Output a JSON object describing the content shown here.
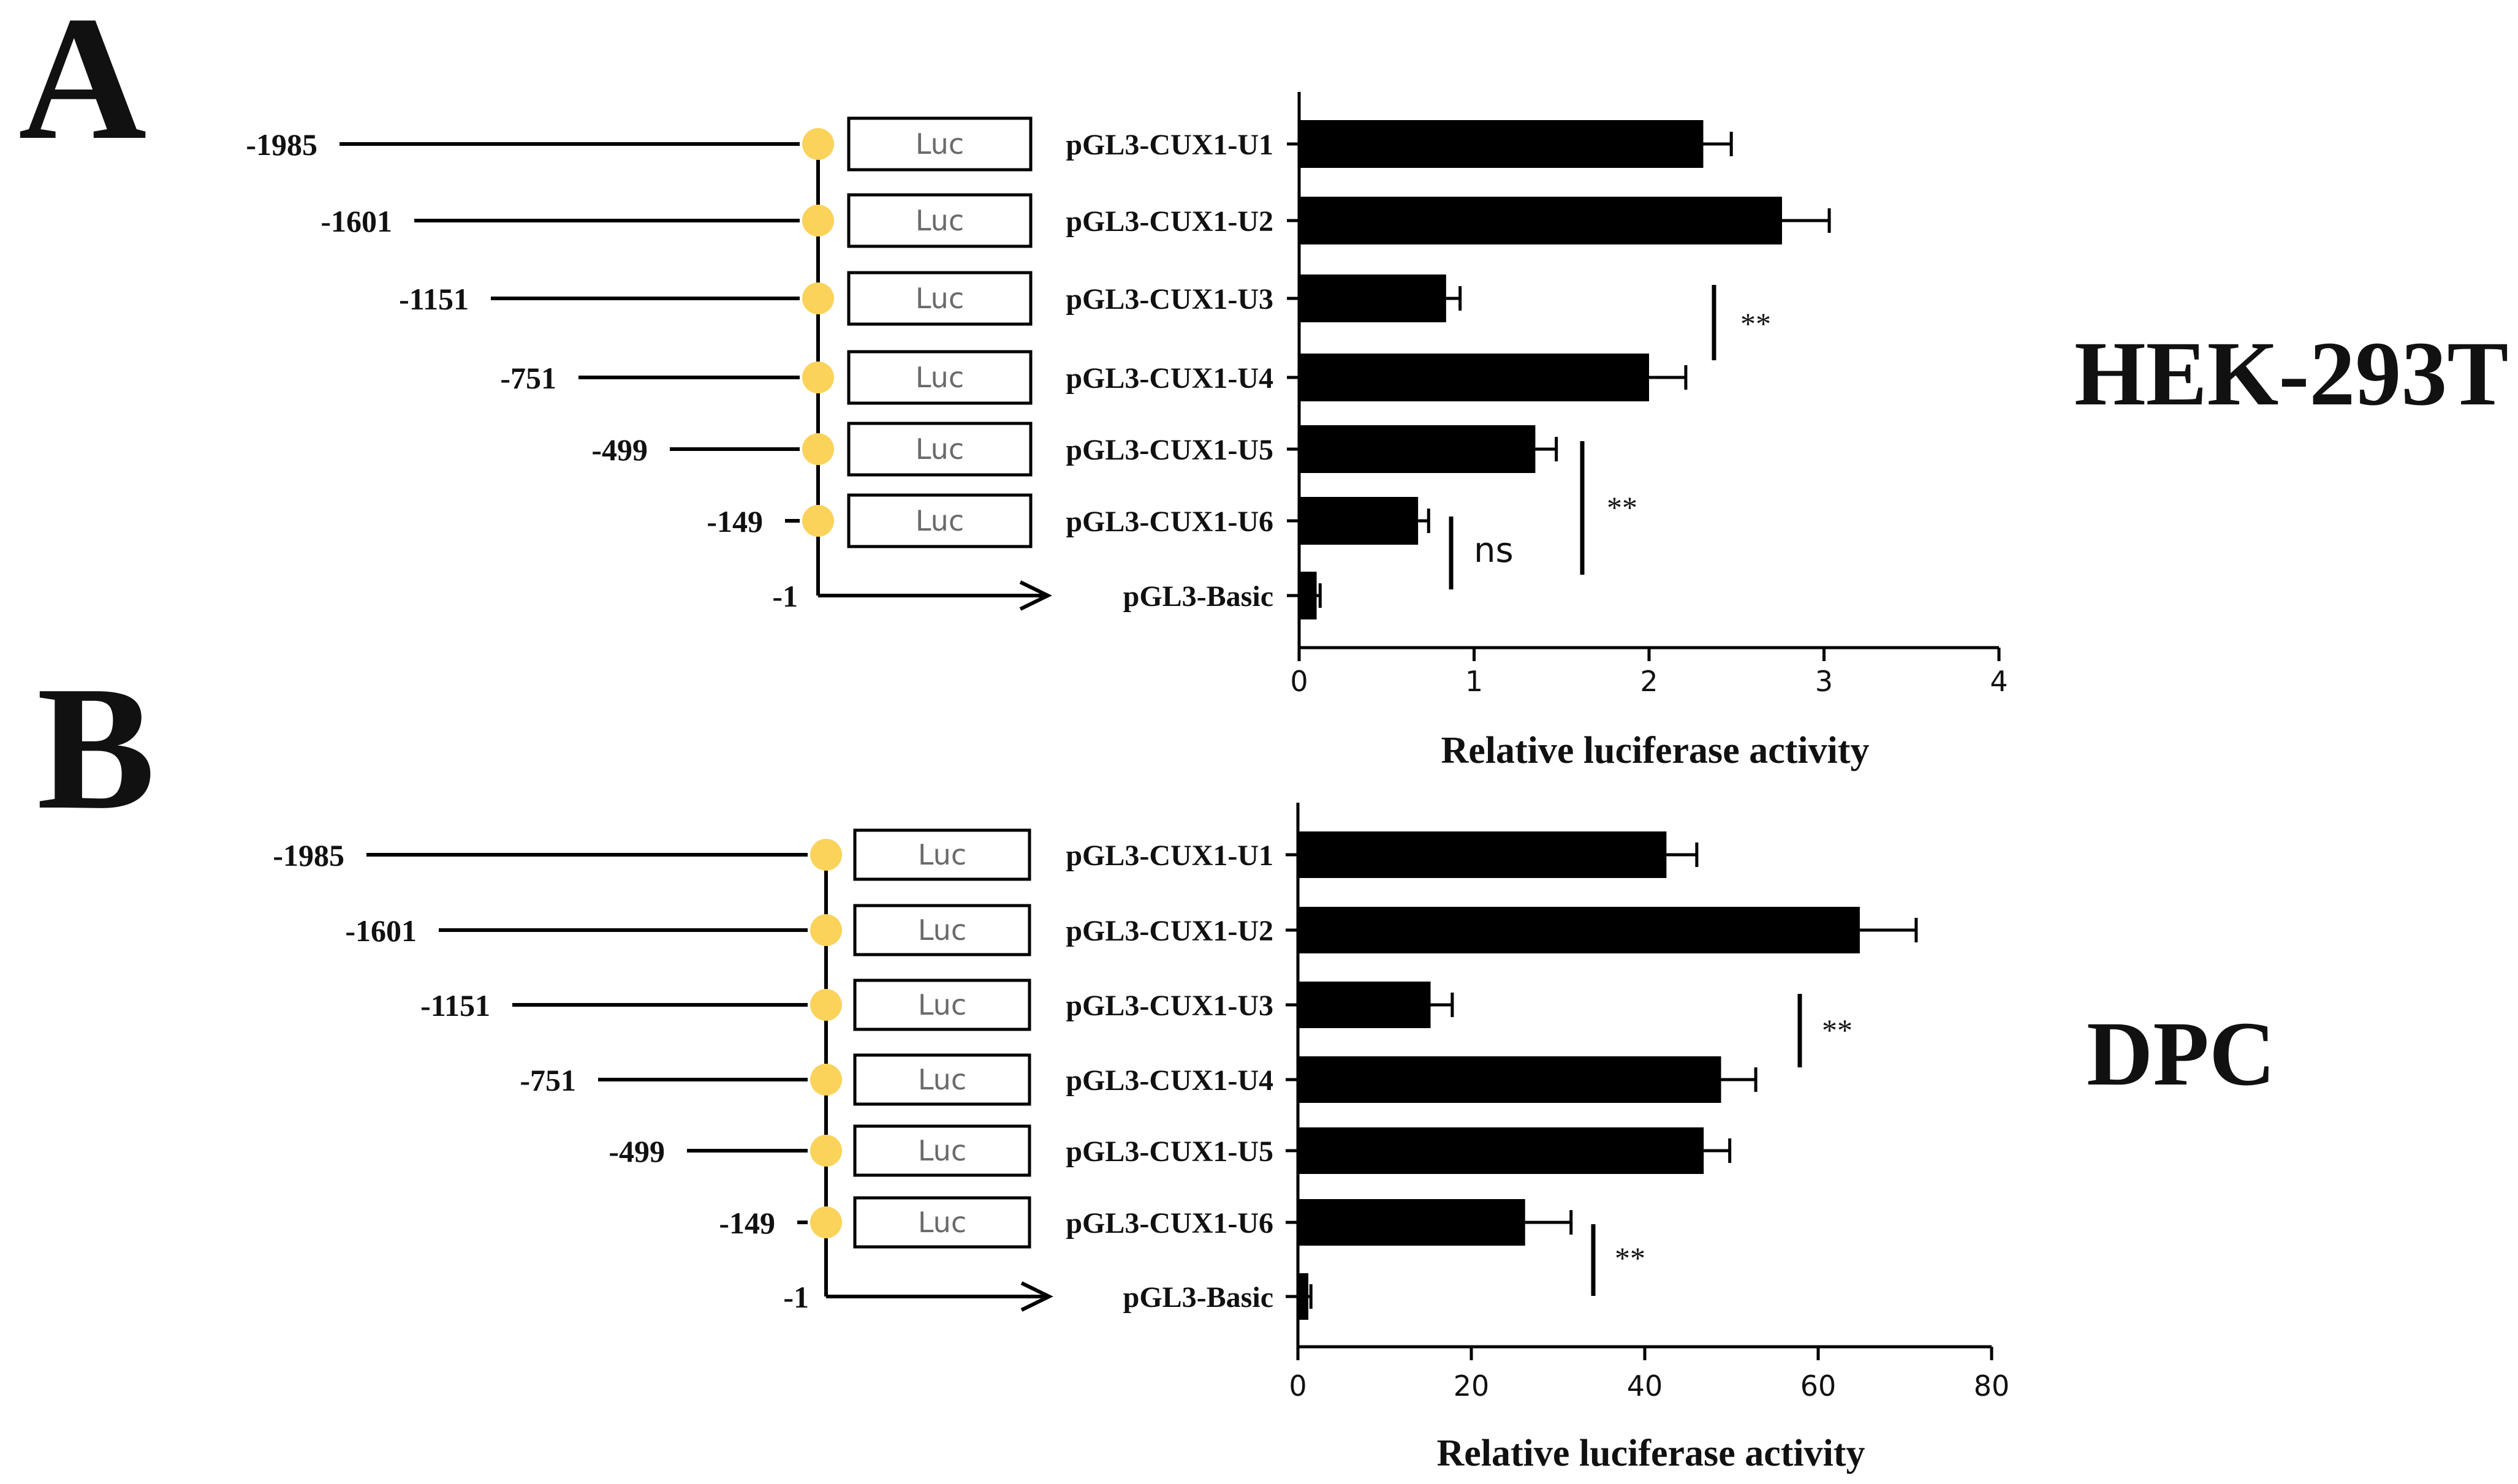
{
  "panels": [
    {
      "letter": "A",
      "cell_line": "HEK-293T",
      "positions": [
        "-1985",
        "-1601",
        "-1151",
        "-751",
        "-499",
        "-149",
        "-1"
      ],
      "reporter_label": "Luc",
      "annotations": [
        {
          "label": "**",
          "between": [
            "pGL3-CUX1-U3",
            "pGL3-CUX1-U4"
          ]
        },
        {
          "label": "**",
          "between": [
            "pGL3-CUX1-U5",
            "pGL3-Basic"
          ]
        },
        {
          "label": "ns",
          "between": [
            "pGL3-CUX1-U6",
            "pGL3-Basic"
          ]
        }
      ]
    },
    {
      "letter": "B",
      "cell_line": "DPC",
      "positions": [
        "-1985",
        "-1601",
        "-1151",
        "-751",
        "-499",
        "-149",
        "-1"
      ],
      "reporter_label": "Luc",
      "annotations": [
        {
          "label": "**",
          "between": [
            "pGL3-CUX1-U3",
            "pGL3-CUX1-U4"
          ]
        },
        {
          "label": "**",
          "between": [
            "pGL3-CUX1-U6",
            "pGL3-Basic"
          ]
        }
      ]
    }
  ],
  "colors": {
    "bar": "#000000",
    "promoter_dot": "#fbd35b",
    "text": "#111111"
  },
  "chart_data": [
    {
      "type": "bar",
      "orientation": "horizontal",
      "title": "HEK-293T",
      "categories": [
        "pGL3-CUX1-U1",
        "pGL3-CUX1-U2",
        "pGL3-CUX1-U3",
        "pGL3-CUX1-U4",
        "pGL3-CUX1-U5",
        "pGL3-CUX1-U6",
        "pGL3-Basic"
      ],
      "values": [
        2.31,
        2.76,
        0.84,
        2.0,
        1.35,
        0.68,
        0.1
      ],
      "errors": [
        0.16,
        0.27,
        0.08,
        0.21,
        0.12,
        0.06,
        0.02
      ],
      "xlabel": "Relative luciferase activity",
      "ylabel": "",
      "xlim": [
        0,
        4
      ],
      "xticks": [
        0,
        1,
        2,
        3,
        4
      ]
    },
    {
      "type": "bar",
      "orientation": "horizontal",
      "title": "DPC",
      "categories": [
        "pGL3-CUX1-U1",
        "pGL3-CUX1-U2",
        "pGL3-CUX1-U3",
        "pGL3-CUX1-U4",
        "pGL3-CUX1-U5",
        "pGL3-CUX1-U6",
        "pGL3-Basic"
      ],
      "values": [
        42.5,
        64.8,
        15.3,
        48.8,
        46.8,
        26.2,
        1.2
      ],
      "errors": [
        3.5,
        6.5,
        2.5,
        4.0,
        3.0,
        5.3,
        0.3
      ],
      "xlabel": "Relative luciferase activity",
      "ylabel": "",
      "xlim": [
        0,
        80
      ],
      "xticks": [
        0,
        20,
        40,
        60,
        80
      ]
    }
  ]
}
